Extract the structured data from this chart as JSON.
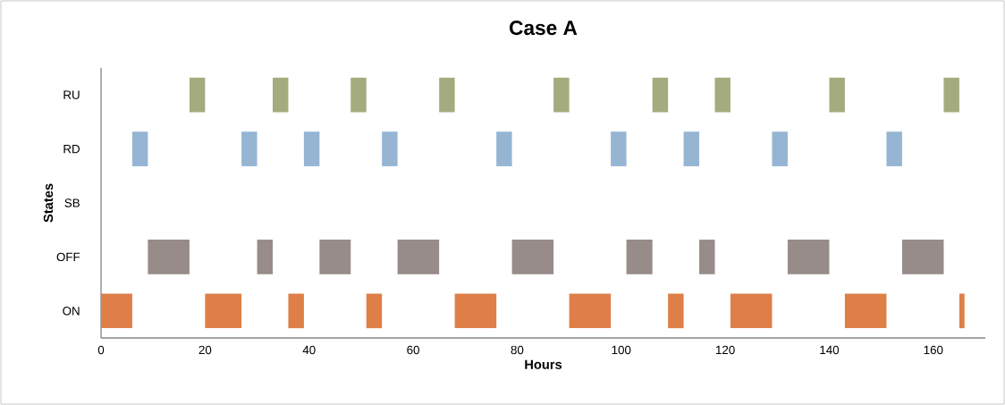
{
  "chart_data": {
    "type": "bar",
    "orientation": "horizontal",
    "title": "Case A",
    "xlabel": "Hours",
    "ylabel": "States",
    "categories": [
      "RU",
      "RD",
      "SB",
      "OFF",
      "ON"
    ],
    "xlim": [
      0,
      170
    ],
    "xticks": [
      0,
      20,
      40,
      60,
      80,
      100,
      120,
      140,
      160
    ],
    "series": [
      {
        "base": [
          17,
          6,
          null,
          9,
          0
        ],
        "values": [
          3,
          3,
          null,
          8,
          6
        ],
        "colors": [
          "#a4ab7e",
          "#95b5d3",
          null,
          "#978c8a",
          "#de7f47"
        ]
      },
      {
        "base": [
          33,
          27,
          null,
          30,
          20
        ],
        "values": [
          3,
          3,
          null,
          3,
          7
        ],
        "colors": [
          "#a4ab7e",
          "#95b5d3",
          null,
          "#978c8a",
          "#de7f47"
        ]
      },
      {
        "base": [
          48,
          39,
          null,
          42,
          36
        ],
        "values": [
          3,
          3,
          null,
          6,
          3
        ],
        "colors": [
          "#a4ab7e",
          "#95b5d3",
          null,
          "#978c8a",
          "#de7f47"
        ]
      },
      {
        "base": [
          65,
          54,
          null,
          57,
          51
        ],
        "values": [
          3,
          3,
          null,
          8,
          3
        ],
        "colors": [
          "#a4ab7e",
          "#95b5d3",
          null,
          "#978c8a",
          "#de7f47"
        ]
      },
      {
        "base": [
          87,
          76,
          null,
          79,
          68
        ],
        "values": [
          3,
          3,
          null,
          8,
          8
        ],
        "colors": [
          "#a4ab7e",
          "#95b5d3",
          null,
          "#978c8a",
          "#de7f47"
        ]
      },
      {
        "base": [
          106,
          98,
          null,
          101,
          90
        ],
        "values": [
          3,
          3,
          null,
          5,
          8
        ],
        "colors": [
          "#a4ab7e",
          "#95b5d3",
          null,
          "#978c8a",
          "#de7f47"
        ]
      },
      {
        "base": [
          118,
          112,
          null,
          115,
          109
        ],
        "values": [
          3,
          3,
          null,
          3,
          3
        ],
        "colors": [
          "#a4ab7e",
          "#95b5d3",
          null,
          "#978c8a",
          "#de7f47"
        ]
      },
      {
        "base": [
          140,
          129,
          null,
          132,
          121
        ],
        "values": [
          3,
          3,
          null,
          8,
          8
        ],
        "colors": [
          "#a4ab7e",
          "#95b5d3",
          null,
          "#978c8a",
          "#de7f47"
        ]
      },
      {
        "base": [
          162,
          151,
          null,
          154,
          143
        ],
        "values": [
          3,
          3,
          null,
          8,
          8
        ],
        "colors": [
          "#a4ab7e",
          "#95b5d3",
          null,
          "#978c8a",
          "#de7f47"
        ]
      },
      {
        "base": [
          null,
          null,
          null,
          null,
          165
        ],
        "values": [
          null,
          null,
          null,
          null,
          1
        ],
        "colors": [
          null,
          null,
          null,
          null,
          "#de7f47"
        ]
      }
    ]
  }
}
